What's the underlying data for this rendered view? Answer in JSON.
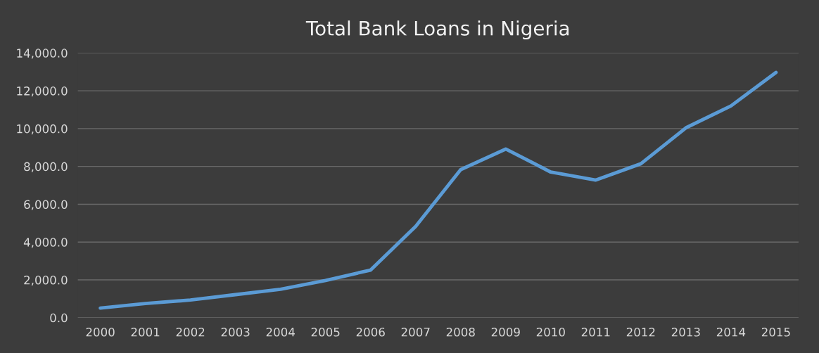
{
  "chart_data": {
    "type": "line",
    "title": "Total Bank Loans in Nigeria",
    "categories": [
      "2000",
      "2001",
      "2002",
      "2003",
      "2004",
      "2005",
      "2006",
      "2007",
      "2008",
      "2009",
      "2010",
      "2011",
      "2012",
      "2013",
      "2014",
      "2015"
    ],
    "series": [
      {
        "color": "#5b9bd5",
        "values": [
          510,
          750,
          935,
          1220,
          1500,
          1970,
          2520,
          4830,
          7830,
          8920,
          7700,
          7280,
          8140,
          10040,
          11200,
          12970
        ]
      }
    ],
    "ylim": [
      0,
      14000
    ],
    "yticks": [
      {
        "value": 0,
        "label": "0.0"
      },
      {
        "value": 2000,
        "label": "2,000.0"
      },
      {
        "value": 4000,
        "label": "4,000.0"
      },
      {
        "value": 6000,
        "label": "6,000.0"
      },
      {
        "value": 8000,
        "label": "8,000.0"
      },
      {
        "value": 10000,
        "label": "10,000.0"
      },
      {
        "value": 12000,
        "label": "12,000.0"
      },
      {
        "value": 14000,
        "label": "14,000.0"
      }
    ],
    "grid": "y",
    "marker": "none",
    "line_style": "solid"
  }
}
